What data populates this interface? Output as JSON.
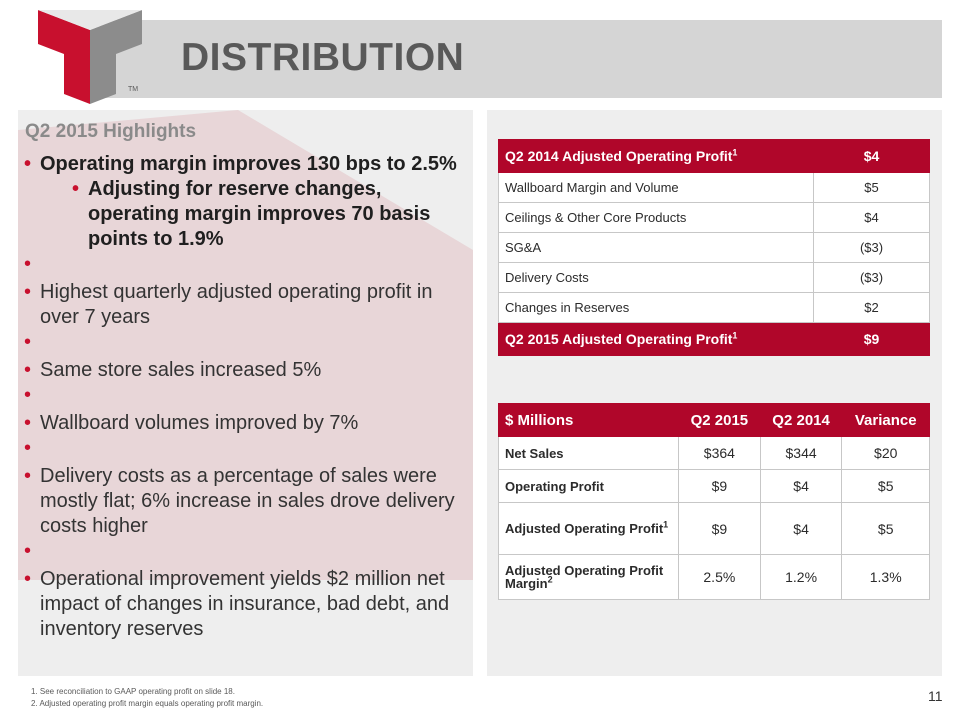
{
  "header": {
    "title": "DISTRIBUTION",
    "tm": "TM"
  },
  "highlights": {
    "title": "Q2 2015 Highlights",
    "bullets": [
      {
        "text": "Operating margin improves 130 bps to 2.5%"
      },
      {
        "text": "Adjusting for reserve changes, operating margin improves 70 basis points to 1.9%"
      },
      {
        "text": "Highest quarterly adjusted operating profit in over 7 years"
      },
      {
        "text": "Same store sales increased 5%"
      },
      {
        "text": "Wallboard volumes improved by 7%"
      },
      {
        "text": "Delivery costs as a percentage of sales were mostly flat; 6% increase in sales drove delivery costs higher"
      },
      {
        "text": "Operational improvement yields $2 million net impact of changes in insurance, bad debt, and inventory reserves"
      }
    ]
  },
  "bridge": {
    "rows": [
      {
        "label": "Q2 2014 Adjusted Operating Profit",
        "sup": "1",
        "value": "$4"
      },
      {
        "label": "Wallboard Margin and Volume",
        "value": "$5"
      },
      {
        "label": "Ceilings & Other Core Products",
        "value": "$4"
      },
      {
        "label": "SG&A",
        "value": "($3)"
      },
      {
        "label": "Delivery Costs",
        "value": "($3)"
      },
      {
        "label": "Changes in Reserves",
        "value": "$2"
      },
      {
        "label": "Q2 2015 Adjusted Operating Profit",
        "sup": "1",
        "value": "$9"
      }
    ]
  },
  "summary": {
    "headers": [
      "$ Millions",
      "Q2 2015",
      "Q2 2014",
      "Variance"
    ],
    "rows": [
      {
        "label": "Net Sales",
        "sup": "",
        "values": [
          "$364",
          "$344",
          "$20"
        ]
      },
      {
        "label": "Operating Profit",
        "sup": "",
        "values": [
          "$9",
          "$4",
          "$5"
        ]
      },
      {
        "label": "Adjusted Operating Profit",
        "sup": "1",
        "values": [
          "$9",
          "$4",
          "$5"
        ]
      },
      {
        "label": "Adjusted Operating Profit Margin",
        "sup": "2",
        "values": [
          "2.5%",
          "1.2%",
          "1.3%"
        ]
      }
    ]
  },
  "footnotes": [
    "1. See reconciliation to GAAP operating profit on slide 18.",
    "2. Adjusted operating profit margin equals operating profit margin."
  ],
  "page_number": "11",
  "colors": {
    "accent": "#b0062a",
    "panel": "#eeeeee",
    "title_bar": "#d5d5d5"
  }
}
